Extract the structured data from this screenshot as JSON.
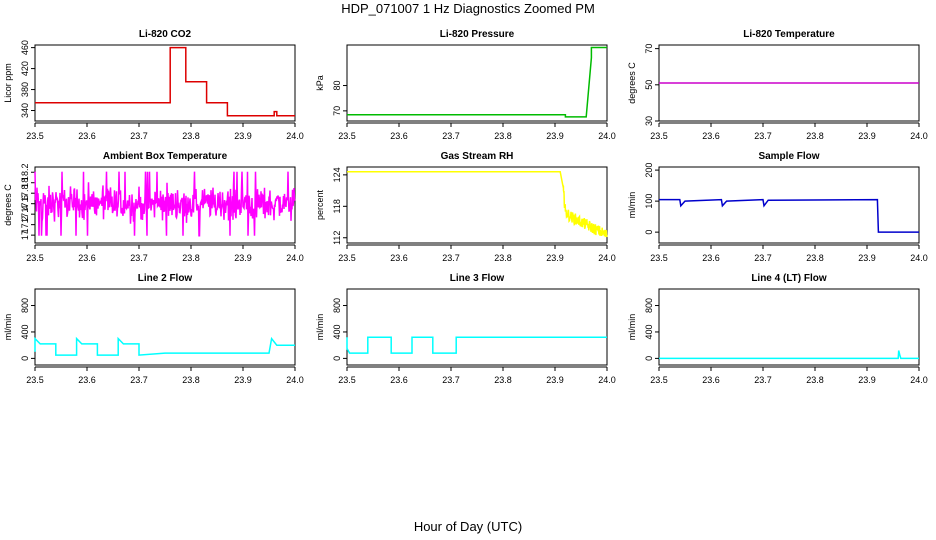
{
  "title": "HDP_071007  1 Hz Diagnostics Zoomed PM",
  "xlabel": "Hour of Day (UTC)",
  "chart_data": [
    {
      "type": "line",
      "title": "Li-820 CO2",
      "ylabel": "Licor ppm",
      "color": "#dd0000",
      "xlim": [
        23.5,
        24.0
      ],
      "ylim": [
        320,
        465
      ],
      "xticks": [
        23.5,
        23.6,
        23.7,
        23.8,
        23.9,
        24.0
      ],
      "yticks": [
        340,
        380,
        420,
        460
      ],
      "grid": false,
      "series": [
        {
          "x": [
            23.5,
            23.75,
            23.76,
            23.76,
            23.79,
            23.79,
            23.83,
            23.83,
            23.87,
            23.87,
            23.96,
            23.96,
            23.965,
            23.965,
            24.0
          ],
          "y": [
            355,
            355,
            355,
            460,
            460,
            395,
            395,
            355,
            355,
            330,
            330,
            338,
            338,
            330,
            330
          ]
        }
      ]
    },
    {
      "type": "line",
      "title": "Li-820 Pressure",
      "ylabel": "kPa",
      "color": "#00bb00",
      "xlim": [
        23.5,
        24.0
      ],
      "ylim": [
        66,
        96
      ],
      "xticks": [
        23.5,
        23.6,
        23.7,
        23.8,
        23.9,
        24.0
      ],
      "yticks": [
        70,
        80
      ],
      "grid": false,
      "series": [
        {
          "x": [
            23.5,
            23.92,
            23.92,
            23.96,
            23.97,
            23.97,
            24.0
          ],
          "y": [
            68.5,
            68.5,
            67.6,
            67.6,
            91,
            95,
            95
          ]
        }
      ]
    },
    {
      "type": "line",
      "title": "Li-820 Temperature",
      "ylabel": "degrees C",
      "color": "#cc00cc",
      "xlim": [
        23.5,
        24.0
      ],
      "ylim": [
        30,
        72
      ],
      "xticks": [
        23.5,
        23.6,
        23.7,
        23.8,
        23.9,
        24.0
      ],
      "yticks": [
        30,
        50,
        70
      ],
      "grid": false,
      "series": [
        {
          "x": [
            23.5,
            24.0
          ],
          "y": [
            51,
            51
          ]
        }
      ]
    },
    {
      "type": "line",
      "title": "Ambient Box Temperature",
      "ylabel": "degrees C",
      "color": "#ff00ff",
      "xlim": [
        23.5,
        24.0
      ],
      "ylim": [
        16.85,
        18.3
      ],
      "xticks": [
        23.5,
        23.6,
        23.7,
        23.8,
        23.9,
        24.0
      ],
      "yticks": [
        17.0,
        17.2,
        17.4,
        17.6,
        17.8,
        18.0,
        18.2
      ],
      "grid": false,
      "series": [
        {
          "x": [
            23.5,
            24.0
          ],
          "y_mean": 17.5,
          "y_min": 16.95,
          "y_max": 18.25
        }
      ]
    },
    {
      "type": "line",
      "title": "Gas Stream RH",
      "ylabel": "percent",
      "color": "#ffff00",
      "xlim": [
        23.5,
        24.0
      ],
      "ylim": [
        111,
        125.5
      ],
      "xticks": [
        23.5,
        23.6,
        23.7,
        23.8,
        23.9,
        24.0
      ],
      "yticks": [
        112,
        118,
        124
      ],
      "grid": false,
      "series": [
        {
          "x": [
            23.5,
            23.91,
            23.915,
            23.92,
            23.93,
            23.94,
            23.95,
            23.96,
            23.97,
            23.98,
            23.99,
            24.0
          ],
          "y": [
            124.6,
            124.6,
            122,
            117,
            116,
            115.5,
            115,
            114.5,
            114,
            113.5,
            113,
            112.5
          ]
        }
      ]
    },
    {
      "type": "line",
      "title": "Sample Flow",
      "ylabel": "ml/min",
      "color": "#0000cc",
      "xlim": [
        23.5,
        24.0
      ],
      "ylim": [
        -35,
        210
      ],
      "xticks": [
        23.5,
        23.6,
        23.7,
        23.8,
        23.9,
        24.0
      ],
      "yticks": [
        0,
        100,
        200
      ],
      "grid": false,
      "series": [
        {
          "x": [
            23.5,
            23.54,
            23.542,
            23.55,
            23.62,
            23.622,
            23.63,
            23.7,
            23.702,
            23.71,
            23.92,
            23.922,
            24.0
          ],
          "y": [
            105,
            105,
            85,
            100,
            105,
            85,
            100,
            105,
            85,
            103,
            105,
            0,
            0
          ]
        }
      ]
    },
    {
      "type": "line",
      "title": "Line 2 Flow",
      "ylabel": "ml/min",
      "color": "#00ffff",
      "xlim": [
        23.5,
        24.0
      ],
      "ylim": [
        -100,
        1050
      ],
      "xticks": [
        23.5,
        23.6,
        23.7,
        23.8,
        23.9,
        24.0
      ],
      "yticks": [
        0,
        400,
        800
      ],
      "grid": false,
      "series": [
        {
          "x": [
            23.5,
            23.5,
            23.51,
            23.54,
            23.54,
            23.58,
            23.58,
            23.59,
            23.62,
            23.62,
            23.66,
            23.66,
            23.67,
            23.7,
            23.7,
            23.75,
            23.95,
            23.955,
            23.965,
            24.0
          ],
          "y": [
            100,
            300,
            220,
            220,
            50,
            50,
            300,
            220,
            220,
            50,
            50,
            300,
            220,
            220,
            50,
            80,
            80,
            300,
            200,
            200
          ]
        }
      ]
    },
    {
      "type": "line",
      "title": "Line 3 Flow",
      "ylabel": "ml/min",
      "color": "#00ffff",
      "xlim": [
        23.5,
        24.0
      ],
      "ylim": [
        -100,
        1050
      ],
      "xticks": [
        23.5,
        23.6,
        23.7,
        23.8,
        23.9,
        24.0
      ],
      "yticks": [
        0,
        400,
        800
      ],
      "grid": false,
      "series": [
        {
          "x": [
            23.5,
            23.5,
            23.505,
            23.54,
            23.54,
            23.585,
            23.585,
            23.625,
            23.625,
            23.665,
            23.665,
            23.71,
            23.71,
            24.0
          ],
          "y": [
            320,
            150,
            80,
            80,
            320,
            320,
            80,
            80,
            320,
            320,
            80,
            80,
            320,
            320
          ]
        }
      ]
    },
    {
      "type": "line",
      "title": "Line 4 (LT) Flow",
      "ylabel": "ml/min",
      "color": "#00ffff",
      "xlim": [
        23.5,
        24.0
      ],
      "ylim": [
        -100,
        1050
      ],
      "xticks": [
        23.5,
        23.6,
        23.7,
        23.8,
        23.9,
        24.0
      ],
      "yticks": [
        0,
        400,
        800
      ],
      "grid": false,
      "series": [
        {
          "x": [
            23.5,
            23.96,
            23.961,
            23.963,
            23.965,
            24.0
          ],
          "y": [
            0,
            0,
            120,
            50,
            0,
            0
          ]
        }
      ]
    }
  ]
}
